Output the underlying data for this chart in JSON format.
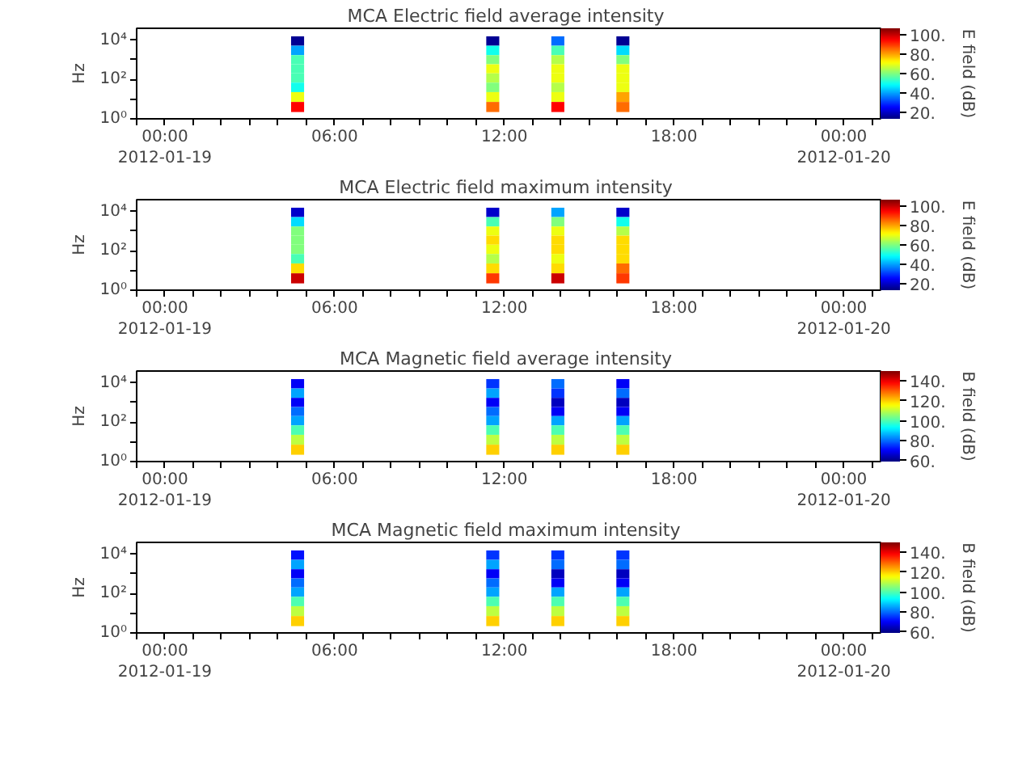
{
  "chart_data": [
    {
      "type": "heatmap",
      "title": "MCA  Electric field average intensity",
      "ylabel": "Hz",
      "clabel": "E field (dB)",
      "x": [
        4.69,
        5.15,
        5.61,
        6.07,
        6.53,
        6.99,
        7.45,
        7.91,
        8.37,
        8.83,
        9.29,
        9.75,
        10.21,
        10.67,
        11.13,
        11.59,
        12.05,
        12.51,
        12.97,
        13.43,
        13.89,
        14.35,
        14.81,
        15.27,
        15.73,
        16.19
      ],
      "y": [
        9000,
        3000,
        1000,
        350,
        120,
        40,
        13,
        4
      ],
      "cells": [
        [
          15,
          null,
          null,
          null,
          null,
          null,
          null,
          null,
          null,
          null,
          null,
          null,
          null,
          null,
          null,
          15,
          null,
          null,
          null,
          null,
          35,
          null,
          null,
          null,
          null,
          15
        ],
        [
          40,
          null,
          null,
          null,
          null,
          null,
          null,
          null,
          null,
          null,
          null,
          null,
          null,
          null,
          null,
          50,
          null,
          null,
          null,
          null,
          55,
          null,
          null,
          null,
          null,
          45
        ],
        [
          55,
          null,
          null,
          null,
          null,
          null,
          null,
          null,
          null,
          null,
          null,
          null,
          null,
          null,
          null,
          60,
          null,
          null,
          null,
          null,
          65,
          null,
          null,
          null,
          null,
          60
        ],
        [
          55,
          null,
          null,
          null,
          null,
          null,
          null,
          null,
          null,
          null,
          null,
          null,
          null,
          null,
          null,
          70,
          null,
          null,
          null,
          null,
          70,
          null,
          null,
          null,
          null,
          70
        ],
        [
          55,
          null,
          null,
          null,
          null,
          null,
          null,
          null,
          null,
          null,
          null,
          null,
          null,
          null,
          null,
          65,
          null,
          null,
          null,
          null,
          70,
          null,
          null,
          null,
          null,
          70
        ],
        [
          50,
          null,
          null,
          null,
          null,
          null,
          null,
          null,
          null,
          null,
          null,
          null,
          null,
          null,
          null,
          60,
          null,
          null,
          null,
          null,
          65,
          null,
          null,
          null,
          null,
          70
        ],
        [
          70,
          null,
          null,
          null,
          null,
          null,
          null,
          null,
          null,
          null,
          null,
          null,
          null,
          null,
          null,
          70,
          null,
          null,
          null,
          null,
          70,
          null,
          null,
          null,
          null,
          80
        ],
        [
          95,
          null,
          null,
          null,
          null,
          null,
          null,
          null,
          null,
          null,
          null,
          null,
          null,
          null,
          null,
          85,
          null,
          null,
          null,
          null,
          95,
          null,
          null,
          null,
          null,
          85
        ]
      ],
      "clim": [
        13,
        107
      ],
      "cticks": [
        {
          "value": 20,
          "label": "20."
        },
        {
          "value": 40,
          "label": "40."
        },
        {
          "value": 60,
          "label": "60."
        },
        {
          "value": 80,
          "label": "80."
        },
        {
          "value": 100,
          "label": "100."
        }
      ],
      "log": "y",
      "ylim": [
        1,
        40000
      ],
      "yticks": [
        {
          "value": 1,
          "label": "10⁰"
        },
        {
          "value": 10,
          "label": null
        },
        {
          "value": 100,
          "label": "10²"
        },
        {
          "value": 1000,
          "label": null
        },
        {
          "value": 10000,
          "label": "10⁴"
        }
      ],
      "xlim": [
        -1,
        25.3
      ],
      "xticks": [
        {
          "value": 0,
          "label": "00:00\n2012-01-19"
        },
        {
          "value": 6,
          "label": "06:00"
        },
        {
          "value": 12,
          "label": "12:00"
        },
        {
          "value": 18,
          "label": "18:00"
        },
        {
          "value": 24,
          "label": "00:00\n2012-01-20"
        },
        {
          "value": -1,
          "label": null
        },
        {
          "value": 1,
          "label": null
        },
        {
          "value": 2,
          "label": null
        },
        {
          "value": 3,
          "label": null
        },
        {
          "value": 4,
          "label": null
        },
        {
          "value": 5,
          "label": null
        },
        {
          "value": 7,
          "label": null
        },
        {
          "value": 8,
          "label": null
        },
        {
          "value": 9,
          "label": null
        },
        {
          "value": 10,
          "label": null
        },
        {
          "value": 11,
          "label": null
        },
        {
          "value": 13,
          "label": null
        },
        {
          "value": 14,
          "label": null
        },
        {
          "value": 15,
          "label": null
        },
        {
          "value": 16,
          "label": null
        },
        {
          "value": 17,
          "label": null
        },
        {
          "value": 19,
          "label": null
        },
        {
          "value": 20,
          "label": null
        },
        {
          "value": 21,
          "label": null
        },
        {
          "value": 22,
          "label": null
        },
        {
          "value": 23,
          "label": null
        },
        {
          "value": 25,
          "label": null
        }
      ]
    },
    {
      "type": "heatmap",
      "title": "MCA  Electric field maximum intensity",
      "ylabel": "Hz",
      "clabel": "E field (dB)",
      "x": [
        4.69,
        5.15,
        5.61,
        6.07,
        6.53,
        6.99,
        7.45,
        7.91,
        8.37,
        8.83,
        9.29,
        9.75,
        10.21,
        10.67,
        11.13,
        11.59,
        12.05,
        12.51,
        12.97,
        13.43,
        13.89,
        14.35,
        14.81,
        15.27,
        15.73,
        16.19
      ],
      "y": [
        9000,
        3000,
        1000,
        350,
        120,
        40,
        13,
        4
      ],
      "cells": [
        [
          20,
          null,
          null,
          null,
          null,
          null,
          null,
          null,
          null,
          null,
          null,
          null,
          null,
          null,
          null,
          20,
          null,
          null,
          null,
          null,
          40,
          null,
          null,
          null,
          null,
          20
        ],
        [
          45,
          null,
          null,
          null,
          null,
          null,
          null,
          null,
          null,
          null,
          null,
          null,
          null,
          null,
          null,
          55,
          null,
          null,
          null,
          null,
          60,
          null,
          null,
          null,
          null,
          50
        ],
        [
          60,
          null,
          null,
          null,
          null,
          null,
          null,
          null,
          null,
          null,
          null,
          null,
          null,
          null,
          null,
          70,
          null,
          null,
          null,
          null,
          70,
          null,
          null,
          null,
          null,
          65
        ],
        [
          60,
          null,
          null,
          null,
          null,
          null,
          null,
          null,
          null,
          null,
          null,
          null,
          null,
          null,
          null,
          75,
          null,
          null,
          null,
          null,
          75,
          null,
          null,
          null,
          null,
          75
        ],
        [
          60,
          null,
          null,
          null,
          null,
          null,
          null,
          null,
          null,
          null,
          null,
          null,
          null,
          null,
          null,
          70,
          null,
          null,
          null,
          null,
          75,
          null,
          null,
          null,
          null,
          75
        ],
        [
          55,
          null,
          null,
          null,
          null,
          null,
          null,
          null,
          null,
          null,
          null,
          null,
          null,
          null,
          null,
          65,
          null,
          null,
          null,
          null,
          70,
          null,
          null,
          null,
          null,
          75
        ],
        [
          75,
          null,
          null,
          null,
          null,
          null,
          null,
          null,
          null,
          null,
          null,
          null,
          null,
          null,
          null,
          75,
          null,
          null,
          null,
          null,
          75,
          null,
          null,
          null,
          null,
          85
        ],
        [
          100,
          null,
          null,
          null,
          null,
          null,
          null,
          null,
          null,
          null,
          null,
          null,
          null,
          null,
          null,
          90,
          null,
          null,
          null,
          null,
          100,
          null,
          null,
          null,
          null,
          90
        ]
      ],
      "clim": [
        13,
        107
      ],
      "cticks": [
        {
          "value": 20,
          "label": "20."
        },
        {
          "value": 40,
          "label": "40."
        },
        {
          "value": 60,
          "label": "60."
        },
        {
          "value": 80,
          "label": "80."
        },
        {
          "value": 100,
          "label": "100."
        }
      ],
      "log": "y",
      "ylim": [
        1,
        40000
      ],
      "yticks": [
        {
          "value": 1,
          "label": "10⁰"
        },
        {
          "value": 10,
          "label": null
        },
        {
          "value": 100,
          "label": "10²"
        },
        {
          "value": 1000,
          "label": null
        },
        {
          "value": 10000,
          "label": "10⁴"
        }
      ],
      "xlim": [
        -1,
        25.3
      ],
      "xticks": [
        {
          "value": 0,
          "label": "00:00\n2012-01-19"
        },
        {
          "value": 6,
          "label": "06:00"
        },
        {
          "value": 12,
          "label": "12:00"
        },
        {
          "value": 18,
          "label": "18:00"
        },
        {
          "value": 24,
          "label": "00:00\n2012-01-20"
        },
        {
          "value": -1,
          "label": null
        },
        {
          "value": 1,
          "label": null
        },
        {
          "value": 2,
          "label": null
        },
        {
          "value": 3,
          "label": null
        },
        {
          "value": 4,
          "label": null
        },
        {
          "value": 5,
          "label": null
        },
        {
          "value": 7,
          "label": null
        },
        {
          "value": 8,
          "label": null
        },
        {
          "value": 9,
          "label": null
        },
        {
          "value": 10,
          "label": null
        },
        {
          "value": 11,
          "label": null
        },
        {
          "value": 13,
          "label": null
        },
        {
          "value": 14,
          "label": null
        },
        {
          "value": 15,
          "label": null
        },
        {
          "value": 16,
          "label": null
        },
        {
          "value": 17,
          "label": null
        },
        {
          "value": 19,
          "label": null
        },
        {
          "value": 20,
          "label": null
        },
        {
          "value": 21,
          "label": null
        },
        {
          "value": 22,
          "label": null
        },
        {
          "value": 23,
          "label": null
        },
        {
          "value": 25,
          "label": null
        }
      ]
    },
    {
      "type": "heatmap",
      "title": "MCA  Magnetic field average intensity",
      "ylabel": "Hz",
      "clabel": "B field (dB)",
      "x": [
        4.69,
        5.15,
        5.61,
        6.07,
        6.53,
        6.99,
        7.45,
        7.91,
        8.37,
        8.83,
        9.29,
        9.75,
        10.21,
        10.67,
        11.13,
        11.59,
        12.05,
        12.51,
        12.97,
        13.43,
        13.89,
        14.35,
        14.81,
        15.27,
        15.73,
        16.19
      ],
      "y": [
        9000,
        3000,
        1000,
        350,
        120,
        40,
        13,
        4
      ],
      "cells": [
        [
          70,
          null,
          null,
          null,
          null,
          null,
          null,
          null,
          null,
          null,
          null,
          null,
          null,
          null,
          null,
          75,
          null,
          null,
          null,
          null,
          80,
          null,
          null,
          null,
          null,
          70
        ],
        [
          85,
          null,
          null,
          null,
          null,
          null,
          null,
          null,
          null,
          null,
          null,
          null,
          null,
          null,
          null,
          85,
          null,
          null,
          null,
          null,
          75,
          null,
          null,
          null,
          null,
          80
        ],
        [
          70,
          null,
          null,
          null,
          null,
          null,
          null,
          null,
          null,
          null,
          null,
          null,
          null,
          null,
          null,
          70,
          null,
          null,
          null,
          null,
          65,
          null,
          null,
          null,
          null,
          65
        ],
        [
          80,
          null,
          null,
          null,
          null,
          null,
          null,
          null,
          null,
          null,
          null,
          null,
          null,
          null,
          null,
          80,
          null,
          null,
          null,
          null,
          70,
          null,
          null,
          null,
          null,
          70
        ],
        [
          85,
          null,
          null,
          null,
          null,
          null,
          null,
          null,
          null,
          null,
          null,
          null,
          null,
          null,
          null,
          85,
          null,
          null,
          null,
          null,
          85,
          null,
          null,
          null,
          null,
          85
        ],
        [
          100,
          null,
          null,
          null,
          null,
          null,
          null,
          null,
          null,
          null,
          null,
          null,
          null,
          null,
          null,
          100,
          null,
          null,
          null,
          null,
          100,
          null,
          null,
          null,
          null,
          100
        ],
        [
          110,
          null,
          null,
          null,
          null,
          null,
          null,
          null,
          null,
          null,
          null,
          null,
          null,
          null,
          null,
          110,
          null,
          null,
          null,
          null,
          110,
          null,
          null,
          null,
          null,
          110
        ],
        [
          120,
          null,
          null,
          null,
          null,
          null,
          null,
          null,
          null,
          null,
          null,
          null,
          null,
          null,
          null,
          120,
          null,
          null,
          null,
          null,
          120,
          null,
          null,
          null,
          null,
          120
        ]
      ],
      "clim": [
        59,
        150
      ],
      "cticks": [
        {
          "value": 60,
          "label": "60."
        },
        {
          "value": 80,
          "label": "80."
        },
        {
          "value": 100,
          "label": "100."
        },
        {
          "value": 120,
          "label": "120."
        },
        {
          "value": 140,
          "label": "140."
        }
      ],
      "log": "y",
      "ylim": [
        1,
        40000
      ],
      "yticks": [
        {
          "value": 1,
          "label": "10⁰"
        },
        {
          "value": 10,
          "label": null
        },
        {
          "value": 100,
          "label": "10²"
        },
        {
          "value": 1000,
          "label": null
        },
        {
          "value": 10000,
          "label": "10⁴"
        }
      ],
      "xlim": [
        -1,
        25.3
      ],
      "xticks": [
        {
          "value": 0,
          "label": "00:00\n2012-01-19"
        },
        {
          "value": 6,
          "label": "06:00"
        },
        {
          "value": 12,
          "label": "12:00"
        },
        {
          "value": 18,
          "label": "18:00"
        },
        {
          "value": 24,
          "label": "00:00\n2012-01-20"
        },
        {
          "value": -1,
          "label": null
        },
        {
          "value": 1,
          "label": null
        },
        {
          "value": 2,
          "label": null
        },
        {
          "value": 3,
          "label": null
        },
        {
          "value": 4,
          "label": null
        },
        {
          "value": 5,
          "label": null
        },
        {
          "value": 7,
          "label": null
        },
        {
          "value": 8,
          "label": null
        },
        {
          "value": 9,
          "label": null
        },
        {
          "value": 10,
          "label": null
        },
        {
          "value": 11,
          "label": null
        },
        {
          "value": 13,
          "label": null
        },
        {
          "value": 14,
          "label": null
        },
        {
          "value": 15,
          "label": null
        },
        {
          "value": 16,
          "label": null
        },
        {
          "value": 17,
          "label": null
        },
        {
          "value": 19,
          "label": null
        },
        {
          "value": 20,
          "label": null
        },
        {
          "value": 21,
          "label": null
        },
        {
          "value": 22,
          "label": null
        },
        {
          "value": 23,
          "label": null
        },
        {
          "value": 25,
          "label": null
        }
      ]
    },
    {
      "type": "heatmap",
      "title": "MCA  Magnetic field maximum intensity",
      "ylabel": "Hz",
      "clabel": "B field (dB)",
      "x": [
        4.69,
        5.15,
        5.61,
        6.07,
        6.53,
        6.99,
        7.45,
        7.91,
        8.37,
        8.83,
        9.29,
        9.75,
        10.21,
        10.67,
        11.13,
        11.59,
        12.05,
        12.51,
        12.97,
        13.43,
        13.89,
        14.35,
        14.81,
        15.27,
        15.73,
        16.19
      ],
      "y": [
        9000,
        3000,
        1000,
        350,
        120,
        40,
        13,
        4
      ],
      "cells": [
        [
          72,
          null,
          null,
          null,
          null,
          null,
          null,
          null,
          null,
          null,
          null,
          null,
          null,
          null,
          null,
          75,
          null,
          null,
          null,
          null,
          75,
          null,
          null,
          null,
          null,
          75
        ],
        [
          85,
          null,
          null,
          null,
          null,
          null,
          null,
          null,
          null,
          null,
          null,
          null,
          null,
          null,
          null,
          85,
          null,
          null,
          null,
          null,
          80,
          null,
          null,
          null,
          null,
          80
        ],
        [
          70,
          null,
          null,
          null,
          null,
          null,
          null,
          null,
          null,
          null,
          null,
          null,
          null,
          null,
          null,
          70,
          null,
          null,
          null,
          null,
          65,
          null,
          null,
          null,
          null,
          65
        ],
        [
          80,
          null,
          null,
          null,
          null,
          null,
          null,
          null,
          null,
          null,
          null,
          null,
          null,
          null,
          null,
          80,
          null,
          null,
          null,
          null,
          70,
          null,
          null,
          null,
          null,
          70
        ],
        [
          85,
          null,
          null,
          null,
          null,
          null,
          null,
          null,
          null,
          null,
          null,
          null,
          null,
          null,
          null,
          85,
          null,
          null,
          null,
          null,
          85,
          null,
          null,
          null,
          null,
          85
        ],
        [
          100,
          null,
          null,
          null,
          null,
          null,
          null,
          null,
          null,
          null,
          null,
          null,
          null,
          null,
          null,
          100,
          null,
          null,
          null,
          null,
          100,
          null,
          null,
          null,
          null,
          100
        ],
        [
          110,
          null,
          null,
          null,
          null,
          null,
          null,
          null,
          null,
          null,
          null,
          null,
          null,
          null,
          null,
          110,
          null,
          null,
          null,
          null,
          110,
          null,
          null,
          null,
          null,
          110
        ],
        [
          120,
          null,
          null,
          null,
          null,
          null,
          null,
          null,
          null,
          null,
          null,
          null,
          null,
          null,
          null,
          120,
          null,
          null,
          null,
          null,
          120,
          null,
          null,
          null,
          null,
          120
        ]
      ],
      "clim": [
        59,
        150
      ],
      "cticks": [
        {
          "value": 60,
          "label": "60."
        },
        {
          "value": 80,
          "label": "80."
        },
        {
          "value": 100,
          "label": "100."
        },
        {
          "value": 120,
          "label": "120."
        },
        {
          "value": 140,
          "label": "140."
        }
      ],
      "log": "y",
      "ylim": [
        1,
        40000
      ],
      "yticks": [
        {
          "value": 1,
          "label": "10⁰"
        },
        {
          "value": 10,
          "label": null
        },
        {
          "value": 100,
          "label": "10²"
        },
        {
          "value": 1000,
          "label": null
        },
        {
          "value": 10000,
          "label": "10⁴"
        }
      ],
      "xlim": [
        -1,
        25.3
      ],
      "xticks": [
        {
          "value": 0,
          "label": "00:00\n2012-01-19"
        },
        {
          "value": 6,
          "label": "06:00"
        },
        {
          "value": 12,
          "label": "12:00"
        },
        {
          "value": 18,
          "label": "18:00"
        },
        {
          "value": 24,
          "label": "00:00\n2012-01-20"
        },
        {
          "value": -1,
          "label": null
        },
        {
          "value": 1,
          "label": null
        },
        {
          "value": 2,
          "label": null
        },
        {
          "value": 3,
          "label": null
        },
        {
          "value": 4,
          "label": null
        },
        {
          "value": 5,
          "label": null
        },
        {
          "value": 7,
          "label": null
        },
        {
          "value": 8,
          "label": null
        },
        {
          "value": 9,
          "label": null
        },
        {
          "value": 10,
          "label": null
        },
        {
          "value": 11,
          "label": null
        },
        {
          "value": 13,
          "label": null
        },
        {
          "value": 14,
          "label": null
        },
        {
          "value": 15,
          "label": null
        },
        {
          "value": 16,
          "label": null
        },
        {
          "value": 17,
          "label": null
        },
        {
          "value": 19,
          "label": null
        },
        {
          "value": 20,
          "label": null
        },
        {
          "value": 21,
          "label": null
        },
        {
          "value": 22,
          "label": null
        },
        {
          "value": 23,
          "label": null
        },
        {
          "value": 25,
          "label": null
        }
      ]
    }
  ]
}
